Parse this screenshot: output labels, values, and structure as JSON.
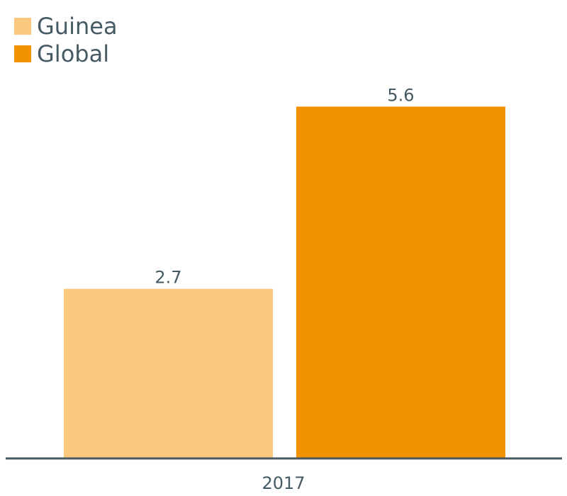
{
  "chart_data": {
    "type": "bar",
    "categories": [
      "2017"
    ],
    "series": [
      {
        "name": "Guinea",
        "values": [
          2.7
        ],
        "color": "#fbc97e"
      },
      {
        "name": "Global",
        "values": [
          5.6
        ],
        "color": "#f39200"
      }
    ],
    "ylim": [
      0,
      6
    ],
    "grid": false,
    "legend_position": "top-left",
    "axis_color": "#455a64",
    "text_color": "#455a64"
  }
}
